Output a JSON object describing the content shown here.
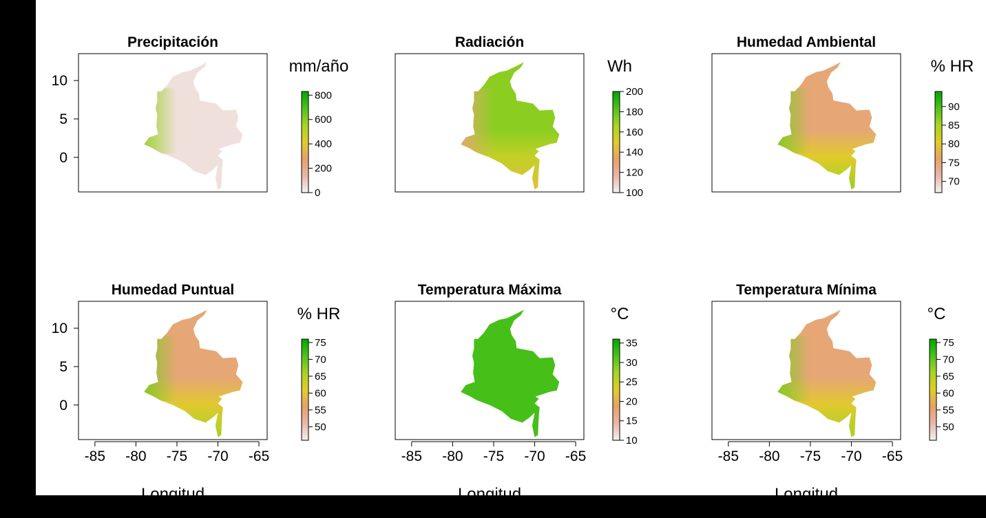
{
  "figure": {
    "x_axis_label": "Longitud"
  },
  "colors": {
    "ramp": [
      "#f2f2f2",
      "#eab5a8",
      "#e6a268",
      "#e0cc2a",
      "#a8d424",
      "#4ec21c",
      "#00a600"
    ],
    "frame": "#000000",
    "background": "#ffffff"
  },
  "chart_data": [
    {
      "type": "heatmap",
      "title": "Precipitación",
      "unit": "mm/año",
      "xlim": [
        -87,
        -64
      ],
      "ylim": [
        -4.5,
        13.5
      ],
      "x_ticks": [
        -85,
        -80,
        -75,
        -70,
        -65
      ],
      "y_ticks": [
        0,
        5,
        10
      ],
      "show_y_axis": true,
      "show_x_axis": false,
      "legend": {
        "min": 0,
        "max": 830,
        "ticks": [
          0,
          200,
          400,
          600,
          800
        ]
      },
      "map_shading": "mostly very low; higher along the Pacific coast",
      "base_level": 0.05,
      "pacific_level": 0.7
    },
    {
      "type": "heatmap",
      "title": "Radiación",
      "unit": "Wh",
      "xlim": [
        -87,
        -64
      ],
      "ylim": [
        -4.5,
        13.5
      ],
      "x_ticks": [
        -85,
        -80,
        -75,
        -70,
        -65
      ],
      "y_ticks": [
        0,
        5,
        10
      ],
      "show_y_axis": false,
      "show_x_axis": false,
      "legend": {
        "min": 100,
        "max": 200,
        "ticks": [
          100,
          120,
          140,
          160,
          180,
          200
        ]
      },
      "base_level": 0.72,
      "pacific_level": 0.3,
      "south_level": 0.45
    },
    {
      "type": "heatmap",
      "title": "Humedad Ambiental",
      "unit": "% HR",
      "xlim": [
        -87,
        -64
      ],
      "ylim": [
        -4.5,
        13.5
      ],
      "x_ticks": [
        -85,
        -80,
        -75,
        -70,
        -65
      ],
      "y_ticks": [
        0,
        5,
        10
      ],
      "show_y_axis": false,
      "show_x_axis": false,
      "legend": {
        "min": 67,
        "max": 94,
        "ticks": [
          70,
          75,
          80,
          85,
          90
        ]
      },
      "base_level": 0.3,
      "pacific_level": 0.75,
      "south_level": 0.7
    },
    {
      "type": "heatmap",
      "title": "Humedad Puntual",
      "unit": "% HR",
      "xlim": [
        -87,
        -64
      ],
      "ylim": [
        -4.5,
        13.5
      ],
      "x_ticks": [
        -85,
        -80,
        -75,
        -70,
        -65
      ],
      "y_ticks": [
        0,
        5,
        10
      ],
      "show_y_axis": true,
      "show_x_axis": true,
      "legend": {
        "min": 46,
        "max": 76,
        "ticks": [
          50,
          55,
          60,
          65,
          70,
          75
        ]
      },
      "base_level": 0.3,
      "pacific_level": 0.75,
      "south_level": 0.68
    },
    {
      "type": "heatmap",
      "title": "Temperatura Máxima",
      "unit": "°C",
      "xlim": [
        -87,
        -64
      ],
      "ylim": [
        -4.5,
        13.5
      ],
      "x_ticks": [
        -85,
        -80,
        -75,
        -70,
        -65
      ],
      "y_ticks": [
        0,
        5,
        10
      ],
      "show_y_axis": false,
      "show_x_axis": true,
      "legend": {
        "min": 10,
        "max": 36,
        "ticks": [
          10,
          15,
          20,
          25,
          30,
          35
        ]
      },
      "base_level": 0.85,
      "pacific_level": 0.85,
      "south_level": 0.85
    },
    {
      "type": "heatmap",
      "title": "Temperatura Mínima",
      "unit": "°C",
      "xlim": [
        -87,
        -64
      ],
      "ylim": [
        -4.5,
        13.5
      ],
      "x_ticks": [
        -85,
        -80,
        -75,
        -70,
        -65
      ],
      "y_ticks": [
        0,
        5,
        10
      ],
      "show_y_axis": false,
      "show_x_axis": true,
      "legend": {
        "min": 46,
        "max": 76,
        "ticks": [
          50,
          55,
          60,
          65,
          70,
          75
        ]
      },
      "base_level": 0.3,
      "pacific_level": 0.75,
      "south_level": 0.68
    }
  ],
  "map_outline_lonlat": [
    [
      -71.3,
      12.4
    ],
    [
      -72.2,
      11.9
    ],
    [
      -73.4,
      11.3
    ],
    [
      -74.3,
      11.1
    ],
    [
      -75.5,
      10.5
    ],
    [
      -76.2,
      9.4
    ],
    [
      -76.9,
      8.6
    ],
    [
      -77.4,
      8.6
    ],
    [
      -77.4,
      7.3
    ],
    [
      -77.6,
      6.4
    ],
    [
      -77.4,
      5.5
    ],
    [
      -77.5,
      4.1
    ],
    [
      -77.3,
      3.0
    ],
    [
      -78.4,
      2.6
    ],
    [
      -79.0,
      1.7
    ],
    [
      -78.0,
      1.2
    ],
    [
      -77.0,
      0.6
    ],
    [
      -75.5,
      0.0
    ],
    [
      -74.0,
      -0.8
    ],
    [
      -72.9,
      -1.8
    ],
    [
      -71.5,
      -2.3
    ],
    [
      -70.6,
      -1.6
    ],
    [
      -70.0,
      -1.0
    ],
    [
      -70.3,
      -2.7
    ],
    [
      -70.0,
      -4.2
    ],
    [
      -69.6,
      -3.9
    ],
    [
      -69.5,
      -1.5
    ],
    [
      -69.4,
      -0.3
    ],
    [
      -70.0,
      0.2
    ],
    [
      -69.5,
      0.8
    ],
    [
      -69.9,
      1.1
    ],
    [
      -68.2,
      1.7
    ],
    [
      -67.3,
      1.9
    ],
    [
      -67.0,
      3.0
    ],
    [
      -67.8,
      4.0
    ],
    [
      -67.5,
      5.2
    ],
    [
      -67.8,
      6.2
    ],
    [
      -69.4,
      6.1
    ],
    [
      -70.2,
      7.0
    ],
    [
      -72.2,
      7.4
    ],
    [
      -72.3,
      8.3
    ],
    [
      -72.8,
      9.1
    ],
    [
      -73.0,
      9.9
    ],
    [
      -72.5,
      11.0
    ],
    [
      -71.7,
      11.7
    ],
    [
      -71.3,
      12.4
    ]
  ]
}
